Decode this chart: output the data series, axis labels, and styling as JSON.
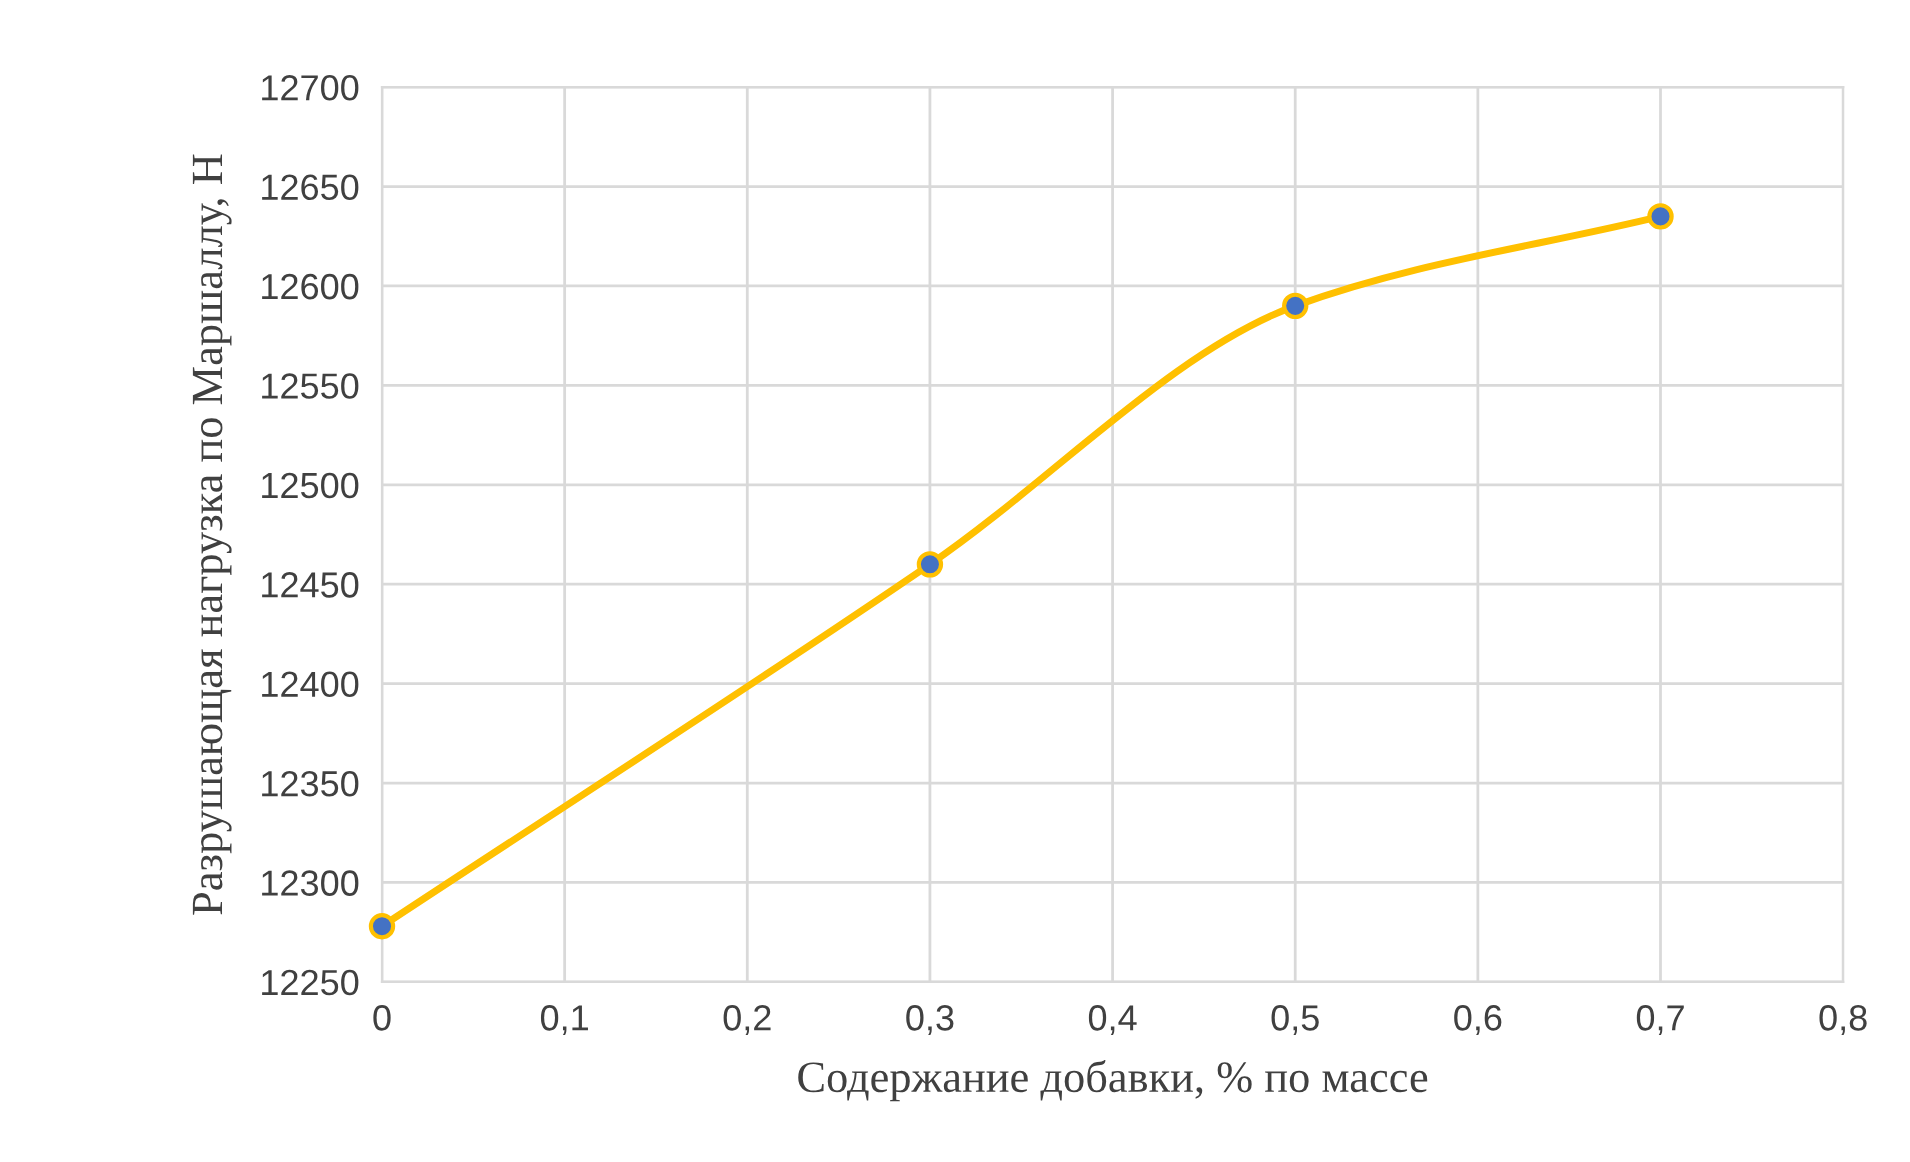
{
  "chart_data": {
    "type": "line",
    "xlabel": "Содержание добавки, % по массе",
    "ylabel": "Разрушающая нагрузка по Маршаллу, Н",
    "x": [
      0,
      0.3,
      0.5,
      0.7
    ],
    "series": [
      {
        "color": "#ffc000",
        "colors": [
          "#4472c4",
          "#4472c4",
          "#4472c4",
          "#4472c4"
        ],
        "values": [
          12278,
          12460,
          12590,
          12635
        ]
      }
    ],
    "marker": "circle",
    "line_style": "solid",
    "grid": true,
    "xlim": [
      0,
      0.8
    ],
    "xticks": [
      {
        "value": 0,
        "label": "0"
      },
      {
        "value": 0.1,
        "label": "0,1"
      },
      {
        "value": 0.2,
        "label": "0,2"
      },
      {
        "value": 0.3,
        "label": "0,3"
      },
      {
        "value": 0.4,
        "label": "0,4"
      },
      {
        "value": 0.5,
        "label": "0,5"
      },
      {
        "value": 0.6,
        "label": "0,6"
      },
      {
        "value": 0.7,
        "label": "0,7"
      },
      {
        "value": 0.8,
        "label": "0,8"
      }
    ],
    "ylim": [
      12250,
      12700
    ],
    "yticks": [
      12250,
      12300,
      12350,
      12400,
      12450,
      12500,
      12550,
      12600,
      12650,
      12700
    ]
  }
}
